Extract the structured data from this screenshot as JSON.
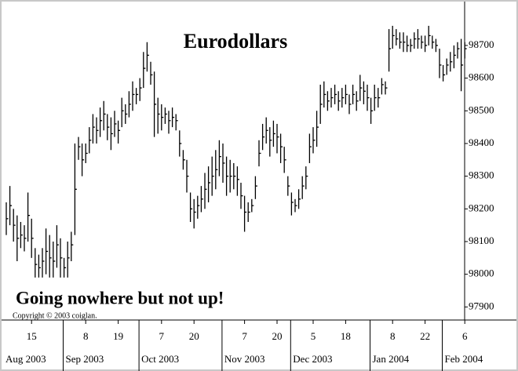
{
  "chart_data": {
    "type": "ohlc",
    "title": "Eurodollars",
    "annotation": "Going nowhere but not up!",
    "copyright": "Copyright © 2003 coiglan.",
    "x": [
      "2003-08-06",
      "2003-08-07",
      "2003-08-08",
      "2003-08-11",
      "2003-08-12",
      "2003-08-13",
      "2003-08-14",
      "2003-08-15",
      "2003-08-18",
      "2003-08-19",
      "2003-08-20",
      "2003-08-21",
      "2003-08-22",
      "2003-08-25",
      "2003-08-26",
      "2003-08-27",
      "2003-08-28",
      "2003-08-29",
      "2003-09-02",
      "2003-09-03",
      "2003-09-04",
      "2003-09-05",
      "2003-09-08",
      "2003-09-09",
      "2003-09-10",
      "2003-09-11",
      "2003-09-12",
      "2003-09-15",
      "2003-09-16",
      "2003-09-17",
      "2003-09-18",
      "2003-09-19",
      "2003-09-22",
      "2003-09-23",
      "2003-09-24",
      "2003-09-25",
      "2003-09-26",
      "2003-09-29",
      "2003-09-30",
      "2003-10-01",
      "2003-10-02",
      "2003-10-03",
      "2003-10-06",
      "2003-10-07",
      "2003-10-08",
      "2003-10-09",
      "2003-10-10",
      "2003-10-13",
      "2003-10-14",
      "2003-10-15",
      "2003-10-16",
      "2003-10-17",
      "2003-10-20",
      "2003-10-21",
      "2003-10-22",
      "2003-10-23",
      "2003-10-24",
      "2003-10-27",
      "2003-10-28",
      "2003-10-29",
      "2003-10-30",
      "2003-10-31",
      "2003-11-03",
      "2003-11-04",
      "2003-11-05",
      "2003-11-06",
      "2003-11-07",
      "2003-11-10",
      "2003-11-11",
      "2003-11-12",
      "2003-11-13",
      "2003-11-14",
      "2003-11-17",
      "2003-11-18",
      "2003-11-19",
      "2003-11-20",
      "2003-11-21",
      "2003-11-24",
      "2003-11-25",
      "2003-11-26",
      "2003-11-28",
      "2003-12-01",
      "2003-12-02",
      "2003-12-03",
      "2003-12-04",
      "2003-12-05",
      "2003-12-08",
      "2003-12-09",
      "2003-12-10",
      "2003-12-11",
      "2003-12-12",
      "2003-12-15",
      "2003-12-16",
      "2003-12-17",
      "2003-12-18",
      "2003-12-19",
      "2003-12-22",
      "2003-12-23",
      "2003-12-24",
      "2003-12-26",
      "2003-12-29",
      "2003-12-30",
      "2003-12-31",
      "2004-01-02",
      "2004-01-05",
      "2004-01-06",
      "2004-01-07",
      "2004-01-08",
      "2004-01-09",
      "2004-01-12",
      "2004-01-13",
      "2004-01-14",
      "2004-01-15",
      "2004-01-16",
      "2004-01-20",
      "2004-01-21",
      "2004-01-22",
      "2004-01-23",
      "2004-01-26",
      "2004-01-27",
      "2004-01-28",
      "2004-01-29",
      "2004-01-30",
      "2004-02-02",
      "2004-02-03",
      "2004-02-04",
      "2004-02-05",
      "2004-02-06"
    ],
    "high": [
      98220,
      98270,
      98200,
      98180,
      98160,
      98150,
      98250,
      98170,
      98080,
      98060,
      98080,
      98140,
      98120,
      98100,
      98150,
      98110,
      98050,
      98100,
      98130,
      98400,
      98420,
      98400,
      98400,
      98450,
      98490,
      98480,
      98510,
      98530,
      98490,
      98480,
      98500,
      98470,
      98540,
      98520,
      98560,
      98590,
      98570,
      98600,
      98680,
      98710,
      98650,
      98620,
      98540,
      98520,
      98510,
      98500,
      98510,
      98490,
      98440,
      98380,
      98350,
      98250,
      98230,
      98240,
      98270,
      98310,
      98330,
      98360,
      98380,
      98410,
      98400,
      98360,
      98350,
      98340,
      98330,
      98280,
      98240,
      98220,
      98230,
      98300,
      98410,
      98460,
      98480,
      98450,
      98470,
      98460,
      98430,
      98390,
      98300,
      98250,
      98230,
      98260,
      98300,
      98330,
      98430,
      98450,
      98500,
      98580,
      98590,
      98560,
      98570,
      98580,
      98560,
      98570,
      98580,
      98550,
      98580,
      98560,
      98610,
      98590,
      98580,
      98540,
      98580,
      98570,
      98600,
      98590,
      98750,
      98760,
      98750,
      98740,
      98740,
      98730,
      98720,
      98740,
      98750,
      98730,
      98730,
      98760,
      98730,
      98720,
      98690,
      98640,
      98660,
      98680,
      98700,
      98710,
      98720,
      98710
    ],
    "low": [
      98120,
      98150,
      98100,
      98040,
      98080,
      98070,
      98100,
      98050,
      97990,
      97990,
      97990,
      98000,
      97990,
      97990,
      98020,
      97990,
      97990,
      97990,
      98040,
      98120,
      98350,
      98300,
      98340,
      98370,
      98400,
      98400,
      98420,
      98440,
      98410,
      98380,
      98420,
      98400,
      98450,
      98460,
      98480,
      98500,
      98520,
      98530,
      98570,
      98620,
      98580,
      98420,
      98430,
      98440,
      98460,
      98430,
      98450,
      98440,
      98360,
      98320,
      98250,
      98160,
      98140,
      98170,
      98190,
      98200,
      98220,
      98240,
      98260,
      98300,
      98280,
      98240,
      98250,
      98260,
      98240,
      98200,
      98130,
      98160,
      98190,
      98230,
      98330,
      98380,
      98400,
      98360,
      98390,
      98370,
      98340,
      98310,
      98240,
      98180,
      98190,
      98200,
      98230,
      98260,
      98340,
      98370,
      98390,
      98460,
      98510,
      98500,
      98510,
      98520,
      98500,
      98510,
      98520,
      98490,
      98520,
      98500,
      98530,
      98520,
      98500,
      98460,
      98500,
      98510,
      98550,
      98550,
      98620,
      98690,
      98700,
      98690,
      98680,
      98680,
      98680,
      98690,
      98690,
      98690,
      98680,
      98700,
      98690,
      98680,
      98600,
      98590,
      98610,
      98620,
      98630,
      98660,
      98560,
      98660
    ],
    "close": [
      98170,
      98210,
      98150,
      98110,
      98120,
      98110,
      98180,
      98110,
      98030,
      98020,
      98040,
      98070,
      98050,
      98040,
      98090,
      98050,
      98020,
      98050,
      98090,
      98260,
      98390,
      98350,
      98370,
      98410,
      98450,
      98440,
      98470,
      98490,
      98450,
      98430,
      98460,
      98440,
      98500,
      98490,
      98520,
      98550,
      98550,
      98570,
      98630,
      98670,
      98610,
      98520,
      98490,
      98480,
      98490,
      98470,
      98480,
      98470,
      98400,
      98350,
      98300,
      98200,
      98190,
      98210,
      98230,
      98260,
      98280,
      98300,
      98320,
      98360,
      98340,
      98300,
      98300,
      98300,
      98290,
      98240,
      98190,
      98190,
      98210,
      98270,
      98370,
      98420,
      98440,
      98410,
      98430,
      98420,
      98390,
      98350,
      98270,
      98220,
      98210,
      98230,
      98270,
      98300,
      98390,
      98410,
      98450,
      98520,
      98550,
      98530,
      98540,
      98550,
      98530,
      98540,
      98550,
      98520,
      98550,
      98530,
      98570,
      98560,
      98540,
      98500,
      98540,
      98540,
      98580,
      98570,
      98690,
      98730,
      98720,
      98710,
      98710,
      98700,
      98700,
      98720,
      98720,
      98710,
      98700,
      98730,
      98710,
      98700,
      98640,
      98610,
      98640,
      98650,
      98670,
      98690,
      98640,
      98690
    ],
    "color": "#000000",
    "ylim": [
      97860,
      98815
    ],
    "yticks": [
      97900,
      98000,
      98100,
      98200,
      98300,
      98400,
      98500,
      98600,
      98700
    ],
    "xticks": [
      {
        "value": "2003-08-15",
        "label": "15"
      },
      {
        "value": "2003-09-08",
        "label": "8"
      },
      {
        "value": "2003-09-19",
        "label": "19"
      },
      {
        "value": "2003-10-07",
        "label": "7"
      },
      {
        "value": "2003-10-20",
        "label": "20"
      },
      {
        "value": "2003-11-07",
        "label": "7"
      },
      {
        "value": "2003-11-20",
        "label": "20"
      },
      {
        "value": "2003-12-05",
        "label": "5"
      },
      {
        "value": "2003-12-18",
        "label": "18"
      },
      {
        "value": "2004-01-08",
        "label": "8"
      },
      {
        "value": "2004-01-22",
        "label": "22"
      },
      {
        "value": "2004-02-06",
        "label": "6"
      }
    ],
    "months": [
      {
        "value": "2003-08-06",
        "label": "Aug 2003"
      },
      {
        "value": "2003-09-02",
        "label": "Sep 2003"
      },
      {
        "value": "2003-10-01",
        "label": "Oct 2003"
      },
      {
        "value": "2003-11-03",
        "label": "Nov 2003"
      },
      {
        "value": "2003-12-01",
        "label": "Dec 2003"
      },
      {
        "value": "2004-01-02",
        "label": "Jan 2004"
      },
      {
        "value": "2004-02-02",
        "label": "Feb 2004"
      }
    ]
  }
}
